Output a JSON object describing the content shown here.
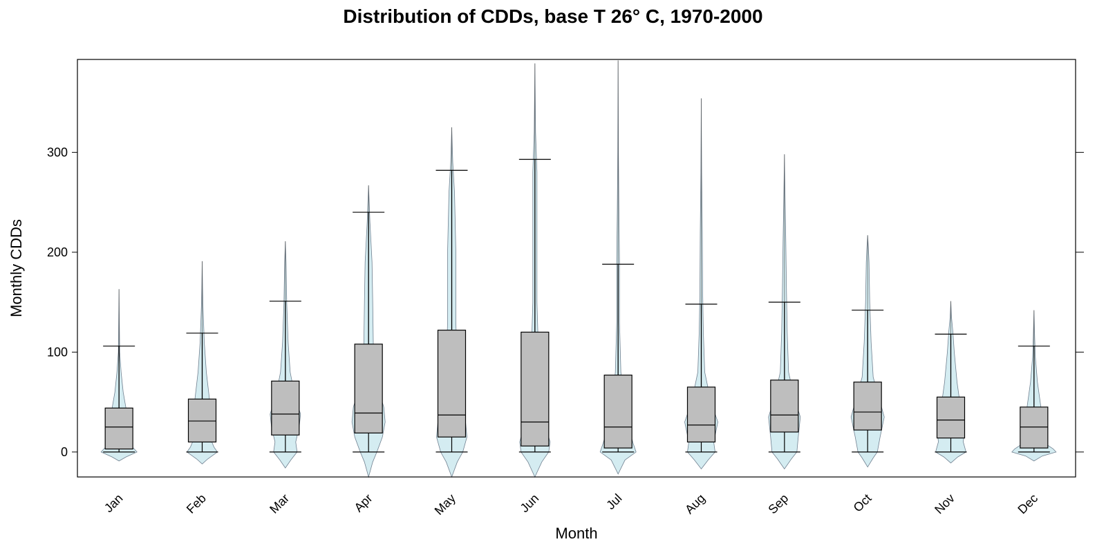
{
  "chart_data": {
    "type": "box-violin",
    "title": "Distribution of CDDs, base T 26° C, 1970-2000",
    "xlabel": "Month",
    "ylabel": "Monthly CDDs",
    "ylim": [
      -25,
      393
    ],
    "yticks": [
      0,
      100,
      200,
      300
    ],
    "grid": false,
    "colors": {
      "violin": "#d4ecf1",
      "violin_stroke": "#708090",
      "box": "#bebebe",
      "line": "#000000"
    },
    "categories": [
      "Jan",
      "Feb",
      "Mar",
      "Apr",
      "May",
      "Jun",
      "Jul",
      "Aug",
      "Sep",
      "Oct",
      "Nov",
      "Dec"
    ],
    "boxes": [
      {
        "month": "Jan",
        "min": 0,
        "q1": 3,
        "median": 25,
        "q3": 44,
        "whisker_high": 106,
        "max": 163
      },
      {
        "month": "Feb",
        "min": 0,
        "q1": 10,
        "median": 31,
        "q3": 53,
        "whisker_high": 119,
        "max": 191
      },
      {
        "month": "Mar",
        "min": 0,
        "q1": 17,
        "median": 38,
        "q3": 71,
        "whisker_high": 151,
        "max": 211
      },
      {
        "month": "Apr",
        "min": 0,
        "q1": 19,
        "median": 39,
        "q3": 108,
        "whisker_high": 240,
        "max": 267
      },
      {
        "month": "May",
        "min": 0,
        "q1": 15,
        "median": 37,
        "q3": 122,
        "whisker_high": 282,
        "max": 325
      },
      {
        "month": "Jun",
        "min": 0,
        "q1": 6,
        "median": 30,
        "q3": 120,
        "whisker_high": 293,
        "max": 389
      },
      {
        "month": "Jul",
        "min": 0,
        "q1": 4,
        "median": 25,
        "q3": 77,
        "whisker_high": 188,
        "max": 392
      },
      {
        "month": "Aug",
        "min": 0,
        "q1": 10,
        "median": 27,
        "q3": 65,
        "whisker_high": 148,
        "max": 354
      },
      {
        "month": "Sep",
        "min": 0,
        "q1": 20,
        "median": 37,
        "q3": 72,
        "whisker_high": 150,
        "max": 298
      },
      {
        "month": "Oct",
        "min": 0,
        "q1": 22,
        "median": 40,
        "q3": 70,
        "whisker_high": 142,
        "max": 217
      },
      {
        "month": "Nov",
        "min": 0,
        "q1": 14,
        "median": 32,
        "q3": 55,
        "whisker_high": 118,
        "max": 151
      },
      {
        "month": "Dec",
        "min": 0,
        "q1": 4,
        "median": 25,
        "q3": 45,
        "whisker_high": 106,
        "max": 142
      }
    ],
    "violins": [
      {
        "month": "Jan",
        "tails": [
          -9,
          163
        ],
        "profile": [
          [
            -9,
            0
          ],
          [
            -5,
            10
          ],
          [
            0,
            26
          ],
          [
            3,
            22
          ],
          [
            10,
            12
          ],
          [
            25,
            14
          ],
          [
            40,
            11
          ],
          [
            60,
            6
          ],
          [
            80,
            3
          ],
          [
            100,
            1
          ],
          [
            130,
            0.5
          ],
          [
            163,
            0
          ]
        ]
      },
      {
        "month": "Feb",
        "tails": [
          -12,
          191
        ],
        "profile": [
          [
            -12,
            0
          ],
          [
            -7,
            8
          ],
          [
            0,
            22
          ],
          [
            5,
            17
          ],
          [
            15,
            11
          ],
          [
            30,
            13
          ],
          [
            50,
            11
          ],
          [
            80,
            6
          ],
          [
            110,
            3
          ],
          [
            145,
            1.2
          ],
          [
            165,
            0.6
          ],
          [
            191,
            0
          ]
        ]
      },
      {
        "month": "Mar",
        "tails": [
          -16,
          211
        ],
        "profile": [
          [
            -16,
            0
          ],
          [
            -8,
            8
          ],
          [
            0,
            17
          ],
          [
            10,
            15
          ],
          [
            25,
            20
          ],
          [
            38,
            22
          ],
          [
            55,
            14
          ],
          [
            80,
            7
          ],
          [
            110,
            4
          ],
          [
            150,
            2
          ],
          [
            190,
            1
          ],
          [
            211,
            0
          ]
        ]
      },
      {
        "month": "Apr",
        "tails": [
          -25,
          267
        ],
        "profile": [
          [
            -25,
            0
          ],
          [
            -10,
            6
          ],
          [
            0,
            12
          ],
          [
            15,
            20
          ],
          [
            30,
            24
          ],
          [
            45,
            22
          ],
          [
            70,
            11
          ],
          [
            100,
            7
          ],
          [
            150,
            6
          ],
          [
            190,
            5
          ],
          [
            230,
            2
          ],
          [
            267,
            0
          ]
        ]
      },
      {
        "month": "May",
        "tails": [
          -25,
          325
        ],
        "profile": [
          [
            -25,
            0
          ],
          [
            -10,
            8
          ],
          [
            0,
            16
          ],
          [
            15,
            22
          ],
          [
            30,
            20
          ],
          [
            45,
            13
          ],
          [
            80,
            8
          ],
          [
            130,
            6
          ],
          [
            200,
            6
          ],
          [
            260,
            4
          ],
          [
            290,
            1.5
          ],
          [
            325,
            0
          ]
        ]
      },
      {
        "month": "Jun",
        "tails": [
          -25,
          389
        ],
        "profile": [
          [
            -25,
            0
          ],
          [
            -10,
            10
          ],
          [
            0,
            20
          ],
          [
            10,
            22
          ],
          [
            25,
            16
          ],
          [
            45,
            10
          ],
          [
            80,
            6
          ],
          [
            150,
            3
          ],
          [
            230,
            3
          ],
          [
            280,
            3
          ],
          [
            320,
            1
          ],
          [
            389,
            0
          ]
        ]
      },
      {
        "month": "Jul",
        "tails": [
          -22,
          392
        ],
        "profile": [
          [
            -22,
            0
          ],
          [
            -8,
            10
          ],
          [
            0,
            26
          ],
          [
            8,
            22
          ],
          [
            25,
            15
          ],
          [
            50,
            8
          ],
          [
            80,
            4
          ],
          [
            130,
            2
          ],
          [
            190,
            2
          ],
          [
            240,
            1.2
          ],
          [
            300,
            0.5
          ],
          [
            392,
            0
          ]
        ]
      },
      {
        "month": "Aug",
        "tails": [
          -17,
          354
        ],
        "profile": [
          [
            -17,
            0
          ],
          [
            -8,
            10
          ],
          [
            0,
            20
          ],
          [
            10,
            18
          ],
          [
            30,
            24
          ],
          [
            50,
            14
          ],
          [
            80,
            5
          ],
          [
            120,
            3
          ],
          [
            160,
            2
          ],
          [
            220,
            1.5
          ],
          [
            280,
            0.6
          ],
          [
            354,
            0
          ]
        ]
      },
      {
        "month": "Sep",
        "tails": [
          -17,
          298
        ],
        "profile": [
          [
            -17,
            0
          ],
          [
            -7,
            10
          ],
          [
            0,
            18
          ],
          [
            15,
            20
          ],
          [
            35,
            23
          ],
          [
            55,
            14
          ],
          [
            80,
            6
          ],
          [
            120,
            4
          ],
          [
            160,
            3
          ],
          [
            210,
            2
          ],
          [
            250,
            1
          ],
          [
            298,
            0
          ]
        ]
      },
      {
        "month": "Oct",
        "tails": [
          -15,
          217
        ],
        "profile": [
          [
            -15,
            0
          ],
          [
            -6,
            8
          ],
          [
            0,
            14
          ],
          [
            15,
            18
          ],
          [
            35,
            24
          ],
          [
            50,
            18
          ],
          [
            75,
            8
          ],
          [
            110,
            5
          ],
          [
            150,
            3
          ],
          [
            190,
            2
          ],
          [
            205,
            1
          ],
          [
            217,
            0
          ]
        ]
      },
      {
        "month": "Nov",
        "tails": [
          -11,
          151
        ],
        "profile": [
          [
            -11,
            0
          ],
          [
            -5,
            10
          ],
          [
            0,
            22
          ],
          [
            10,
            18
          ],
          [
            25,
            20
          ],
          [
            45,
            14
          ],
          [
            70,
            9
          ],
          [
            100,
            5
          ],
          [
            120,
            3
          ],
          [
            135,
            1
          ],
          [
            151,
            0
          ]
        ]
      },
      {
        "month": "Dec",
        "tails": [
          -9,
          142
        ],
        "profile": [
          [
            -9,
            0
          ],
          [
            -4,
            12
          ],
          [
            0,
            32
          ],
          [
            3,
            28
          ],
          [
            10,
            13
          ],
          [
            25,
            14
          ],
          [
            45,
            10
          ],
          [
            70,
            5
          ],
          [
            95,
            2
          ],
          [
            115,
            1
          ],
          [
            142,
            0
          ]
        ]
      }
    ]
  }
}
